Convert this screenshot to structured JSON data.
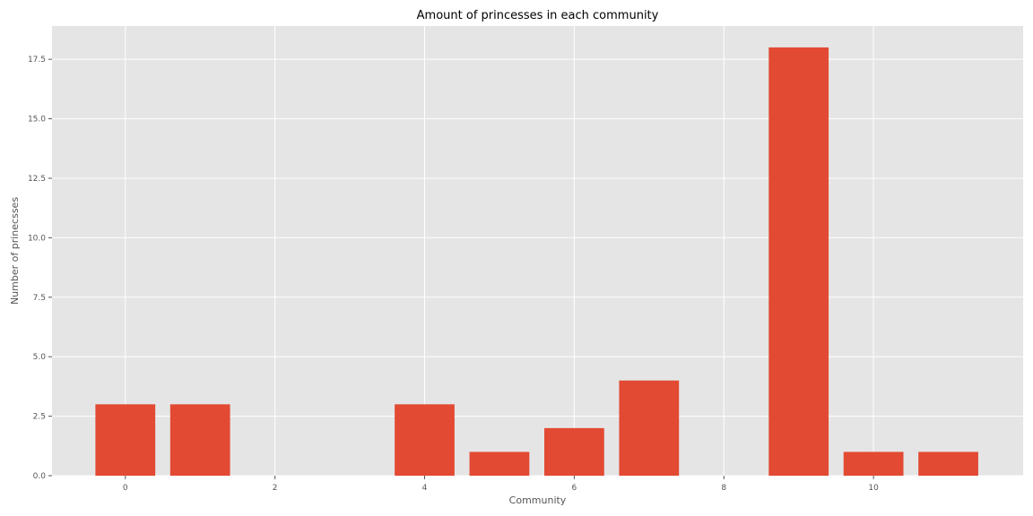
{
  "chart_data": {
    "type": "bar",
    "title": "Amount of princesses in each community",
    "xlabel": "Community",
    "ylabel": "Number of prinecsses",
    "x": [
      0,
      1,
      2,
      3,
      4,
      5,
      6,
      7,
      8,
      9,
      10,
      11
    ],
    "values": [
      3,
      3,
      0,
      0,
      3,
      1,
      2,
      4,
      0,
      18,
      1,
      1
    ],
    "xlim": [
      -0.98,
      12.0
    ],
    "ylim": [
      0,
      18.9
    ],
    "xticks": [
      0,
      2,
      4,
      6,
      8,
      10
    ],
    "xtick_labels": [
      "0",
      "2",
      "4",
      "6",
      "8",
      "10"
    ],
    "yticks": [
      0,
      2.5,
      5,
      7.5,
      10,
      12.5,
      15,
      17.5
    ],
    "ytick_labels": [
      "0.0",
      "2.5",
      "5.0",
      "7.5",
      "10.0",
      "12.5",
      "15.0",
      "17.5"
    ],
    "grid": true,
    "legend": false,
    "colors": {
      "bar": "#e24a33",
      "background": "#e5e5e5",
      "grid": "#ffffff"
    }
  }
}
